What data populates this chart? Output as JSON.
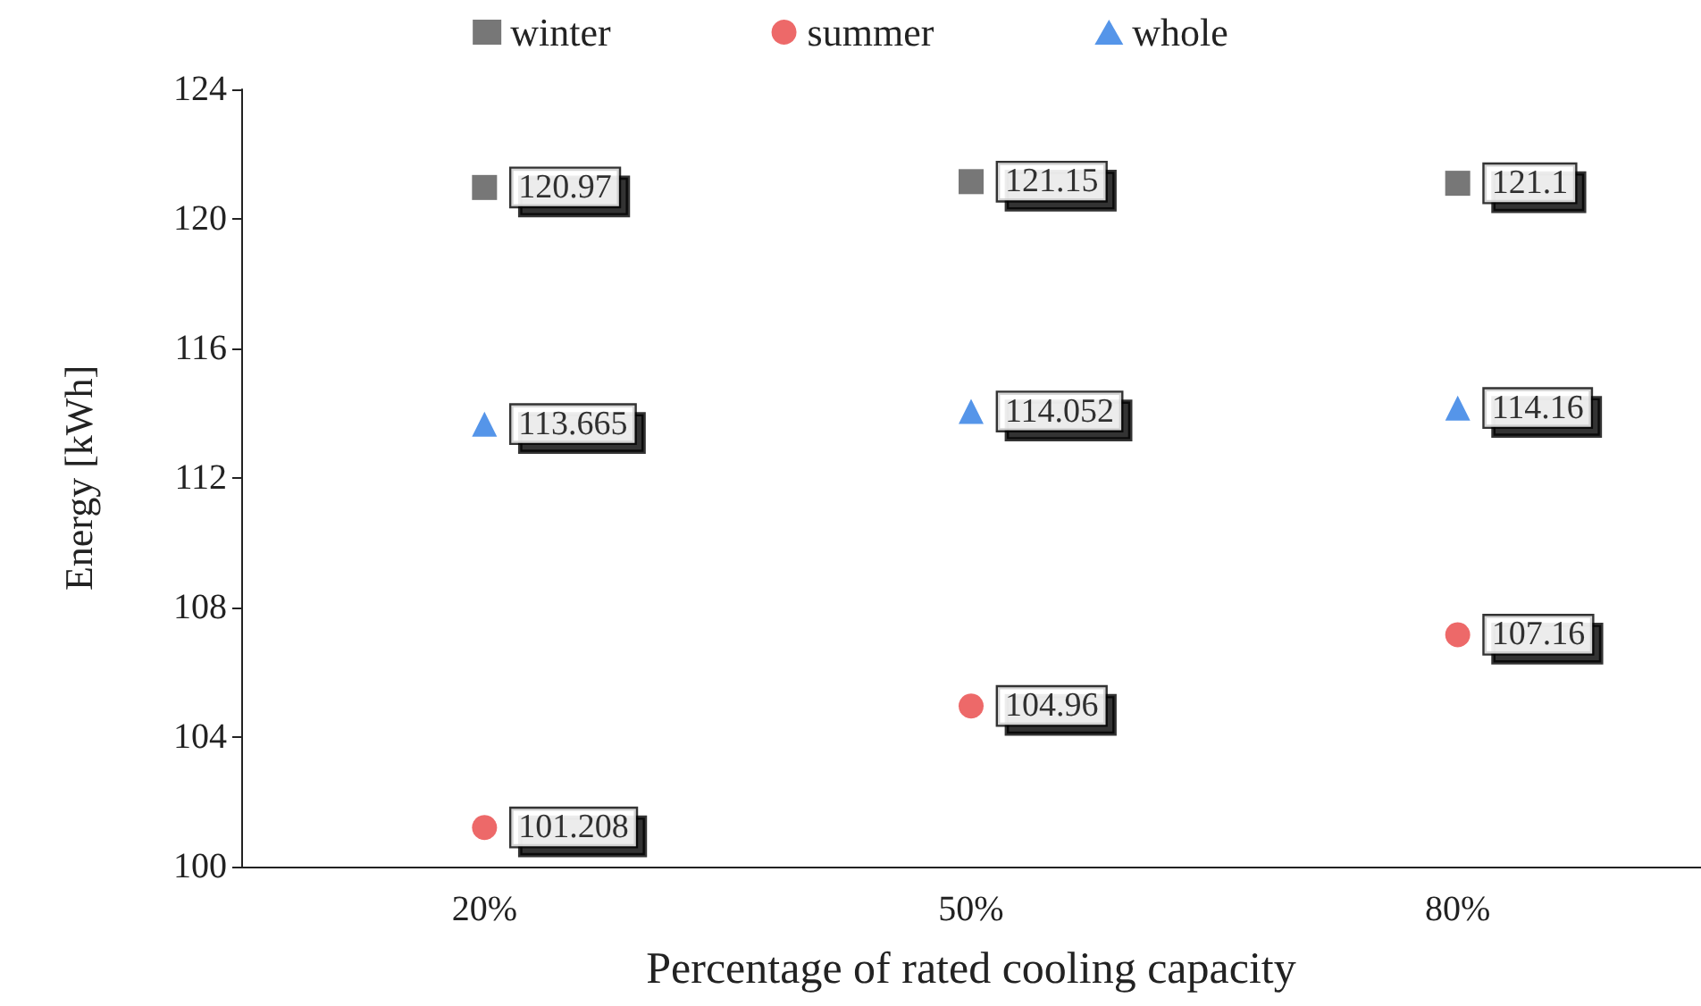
{
  "chart_data": {
    "type": "scatter",
    "xlabel": "Percentage of rated cooling capacity",
    "ylabel": "Energy [kWh]",
    "categories": [
      "20%",
      "50%",
      "80%"
    ],
    "series": [
      {
        "name": "winter",
        "color": "#555555",
        "marker": "square",
        "values": [
          120.97,
          121.15,
          121.1
        ]
      },
      {
        "name": "summer",
        "color": "#e84444",
        "marker": "circle",
        "values": [
          101.208,
          104.96,
          107.16
        ]
      },
      {
        "name": "whole",
        "color": "#2a7be4",
        "marker": "triangle",
        "values": [
          113.665,
          114.052,
          114.16
        ]
      }
    ],
    "ylim": [
      100,
      124
    ],
    "yticks": [
      100,
      104,
      108,
      112,
      116,
      120,
      124
    ],
    "grid": false,
    "legend": "top",
    "data_labels": true
  }
}
